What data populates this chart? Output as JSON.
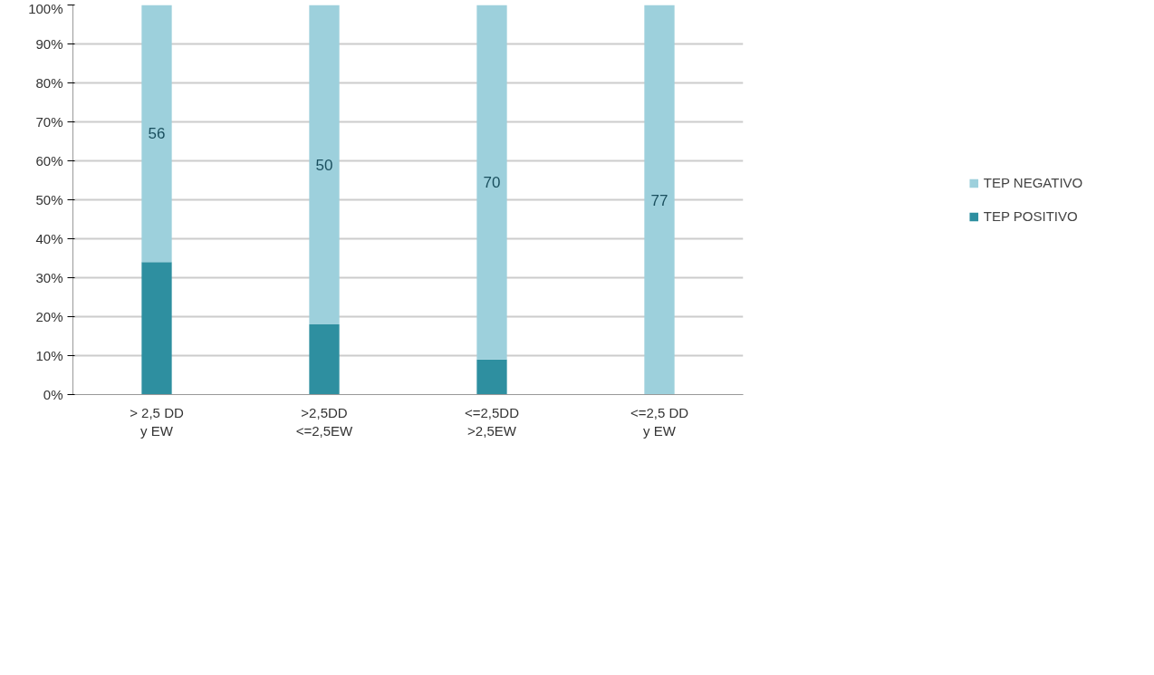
{
  "chart_data": {
    "type": "bar",
    "stacked": true,
    "categories": [
      "> 2,5 DD\ny EW",
      ">2,5DD\n<=2,5EW",
      "<=2,5DD\n>2,5EW",
      "<=2,5 DD\ny EW"
    ],
    "series": [
      {
        "name": "TEP POSITIVO",
        "color": "#2e8fa0",
        "values": [
          34,
          18,
          9,
          0
        ]
      },
      {
        "name": "TEP NEGATIVO",
        "color": "#9dd0dc",
        "values": [
          66,
          82,
          91,
          100
        ]
      }
    ],
    "annotations": [
      "56",
      "50",
      "70",
      "77"
    ],
    "ylim": [
      0,
      100
    ],
    "yticks": [
      {
        "value": 0,
        "label": "0%"
      },
      {
        "value": 10,
        "label": "10%"
      },
      {
        "value": 20,
        "label": "20%"
      },
      {
        "value": 30,
        "label": "30%"
      },
      {
        "value": 40,
        "label": "40%"
      },
      {
        "value": 50,
        "label": "50%"
      },
      {
        "value": 60,
        "label": "60%"
      },
      {
        "value": 70,
        "label": "70%"
      },
      {
        "value": 80,
        "label": "80%"
      },
      {
        "value": 90,
        "label": "90%"
      },
      {
        "value": 100,
        "label": "100%"
      }
    ],
    "grid": "y",
    "legend": "right"
  }
}
